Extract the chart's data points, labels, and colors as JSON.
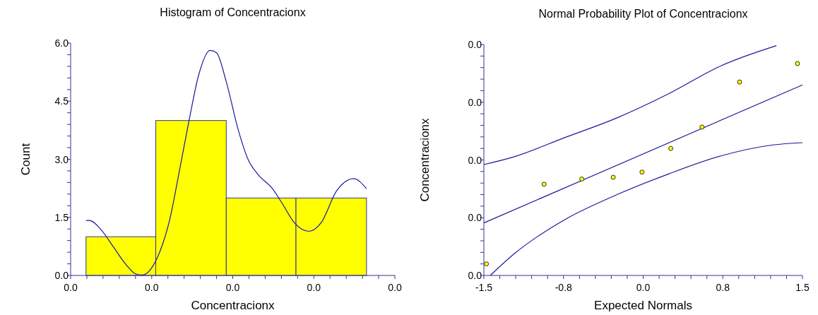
{
  "chart_data": [
    {
      "type": "histogram",
      "title": "Histogram of Concentracionx",
      "xlabel": "Concentracionx",
      "ylabel": "Count",
      "color": "#ffff00",
      "bins": [
        0.0019,
        0.0105,
        0.0192,
        0.0278,
        0.0365
      ],
      "values": [
        1,
        4,
        2,
        2
      ],
      "series": [
        {
          "type": "line",
          "color": "#1a1a9a",
          "x": [
            0.0019,
            0.0023,
            0.0038,
            0.0053,
            0.0068,
            0.008,
            0.0088,
            0.0098,
            0.011,
            0.0122,
            0.0134,
            0.0146,
            0.0158,
            0.0172,
            0.018,
            0.0192,
            0.0207,
            0.0219,
            0.0231,
            0.0249,
            0.0261,
            0.0276,
            0.0294,
            0.0309,
            0.0328,
            0.0349,
            0.0365
          ],
          "values": [
            1.42,
            1.42,
            1.17,
            0.73,
            0.29,
            0.04,
            0.01,
            0.14,
            0.61,
            1.42,
            2.68,
            3.99,
            5.18,
            5.81,
            5.75,
            5.0,
            3.74,
            2.99,
            2.61,
            2.24,
            1.86,
            1.36,
            1.14,
            1.36,
            2.18,
            2.5,
            2.24
          ]
        }
      ],
      "xlim": [
        0,
        0.04
      ],
      "ylim": [
        0,
        6
      ],
      "xticks": [
        {
          "value": 0,
          "label": "0.0"
        },
        {
          "value": 0.002,
          "label": null
        },
        {
          "value": 0.004,
          "label": null
        },
        {
          "value": 0.006,
          "label": null
        },
        {
          "value": 0.008,
          "label": null
        },
        {
          "value": 0.01,
          "label": "0.0"
        },
        {
          "value": 0.012,
          "label": null
        },
        {
          "value": 0.014,
          "label": null
        },
        {
          "value": 0.016,
          "label": null
        },
        {
          "value": 0.018,
          "label": null
        },
        {
          "value": 0.02,
          "label": "0.0"
        },
        {
          "value": 0.022,
          "label": null
        },
        {
          "value": 0.024,
          "label": null
        },
        {
          "value": 0.026,
          "label": null
        },
        {
          "value": 0.028,
          "label": null
        },
        {
          "value": 0.03,
          "label": "0.0"
        },
        {
          "value": 0.032,
          "label": null
        },
        {
          "value": 0.034,
          "label": null
        },
        {
          "value": 0.036,
          "label": null
        },
        {
          "value": 0.038,
          "label": null
        },
        {
          "value": 0.04,
          "label": "0.0"
        }
      ],
      "yticks": [
        {
          "value": 0,
          "label": "0.0"
        },
        {
          "value": 0.3,
          "label": null
        },
        {
          "value": 0.6,
          "label": null
        },
        {
          "value": 0.9,
          "label": null
        },
        {
          "value": 1.2,
          "label": null
        },
        {
          "value": 1.5,
          "label": "1.5"
        },
        {
          "value": 1.8,
          "label": null
        },
        {
          "value": 2.1,
          "label": null
        },
        {
          "value": 2.4,
          "label": null
        },
        {
          "value": 2.7,
          "label": null
        },
        {
          "value": 3,
          "label": "3.0"
        },
        {
          "value": 3.3,
          "label": null
        },
        {
          "value": 3.6,
          "label": null
        },
        {
          "value": 3.9,
          "label": null
        },
        {
          "value": 4.2,
          "label": null
        },
        {
          "value": 4.5,
          "label": "4.5"
        },
        {
          "value": 4.8,
          "label": null
        },
        {
          "value": 5.1,
          "label": null
        },
        {
          "value": 5.4,
          "label": null
        },
        {
          "value": 5.7,
          "label": null
        },
        {
          "value": 6,
          "label": "6.0"
        }
      ],
      "grid": false
    },
    {
      "type": "scatter",
      "title": "Normal Probability Plot of Concentracionx",
      "xlabel": "Expected Normals",
      "ylabel": "Concentracionx",
      "series": [
        {
          "type": "line",
          "color": "#1a1a9a",
          "x": [
            -1.5,
            -1.224,
            -0.735,
            -0.246,
            0.243,
            0.732,
            1.255
          ],
          "values": [
            0.0192,
            0.0205,
            0.0239,
            0.0273,
            0.0315,
            0.0363,
            0.0398
          ]
        },
        {
          "type": "line",
          "color": "#1a1a9a",
          "x": [
            -1.5,
            1.5
          ],
          "values": [
            0.0091,
            0.033
          ]
        },
        {
          "type": "line",
          "color": "#1a1a9a",
          "x": [
            -1.439,
            -1.224,
            -0.735,
            -0.246,
            0.243,
            0.732,
            1.22,
            1.5
          ],
          "values": [
            0,
            0.0036,
            0.0097,
            0.014,
            0.0176,
            0.0207,
            0.0226,
            0.023
          ]
        },
        {
          "type": "scatter",
          "marker": "circle",
          "color": "#ffff00",
          "x": [
            -1.476,
            -0.933,
            -0.578,
            -0.282,
            -0.011,
            0.26,
            0.554,
            0.908,
            1.453
          ],
          "values": [
            0.002,
            0.0158,
            0.0167,
            0.017,
            0.0179,
            0.022,
            0.0257,
            0.0335,
            0.0367
          ]
        }
      ],
      "xlim": [
        -1.5,
        1.5
      ],
      "ylim": [
        0,
        0.04
      ],
      "xticks": [
        {
          "value": -1.5,
          "label": "-1.5"
        },
        {
          "value": -1.35,
          "label": null
        },
        {
          "value": -1.2,
          "label": null
        },
        {
          "value": -1.05,
          "label": null
        },
        {
          "value": -0.9,
          "label": null
        },
        {
          "value": -0.75,
          "label": "-0.8"
        },
        {
          "value": -0.6,
          "label": null
        },
        {
          "value": -0.45,
          "label": null
        },
        {
          "value": -0.3,
          "label": null
        },
        {
          "value": -0.15,
          "label": null
        },
        {
          "value": 0,
          "label": "0.0"
        },
        {
          "value": 0.15,
          "label": null
        },
        {
          "value": 0.3,
          "label": null
        },
        {
          "value": 0.45,
          "label": null
        },
        {
          "value": 0.6,
          "label": null
        },
        {
          "value": 0.75,
          "label": "0.8"
        },
        {
          "value": 0.9,
          "label": null
        },
        {
          "value": 1.05,
          "label": null
        },
        {
          "value": 1.2,
          "label": null
        },
        {
          "value": 1.35,
          "label": null
        },
        {
          "value": 1.5,
          "label": "1.5"
        }
      ],
      "yticks": [
        {
          "value": 0,
          "label": "0.0"
        },
        {
          "value": 0.002,
          "label": null
        },
        {
          "value": 0.004,
          "label": null
        },
        {
          "value": 0.006,
          "label": null
        },
        {
          "value": 0.008,
          "label": null
        },
        {
          "value": 0.01,
          "label": "0.0"
        },
        {
          "value": 0.012,
          "label": null
        },
        {
          "value": 0.014,
          "label": null
        },
        {
          "value": 0.016,
          "label": null
        },
        {
          "value": 0.018,
          "label": null
        },
        {
          "value": 0.02,
          "label": "0.0"
        },
        {
          "value": 0.022,
          "label": null
        },
        {
          "value": 0.024,
          "label": null
        },
        {
          "value": 0.026,
          "label": null
        },
        {
          "value": 0.028,
          "label": null
        },
        {
          "value": 0.03,
          "label": "0.0"
        },
        {
          "value": 0.032,
          "label": null
        },
        {
          "value": 0.034,
          "label": null
        },
        {
          "value": 0.036,
          "label": null
        },
        {
          "value": 0.038,
          "label": null
        },
        {
          "value": 0.04,
          "label": "0.0"
        }
      ],
      "grid": false
    }
  ]
}
